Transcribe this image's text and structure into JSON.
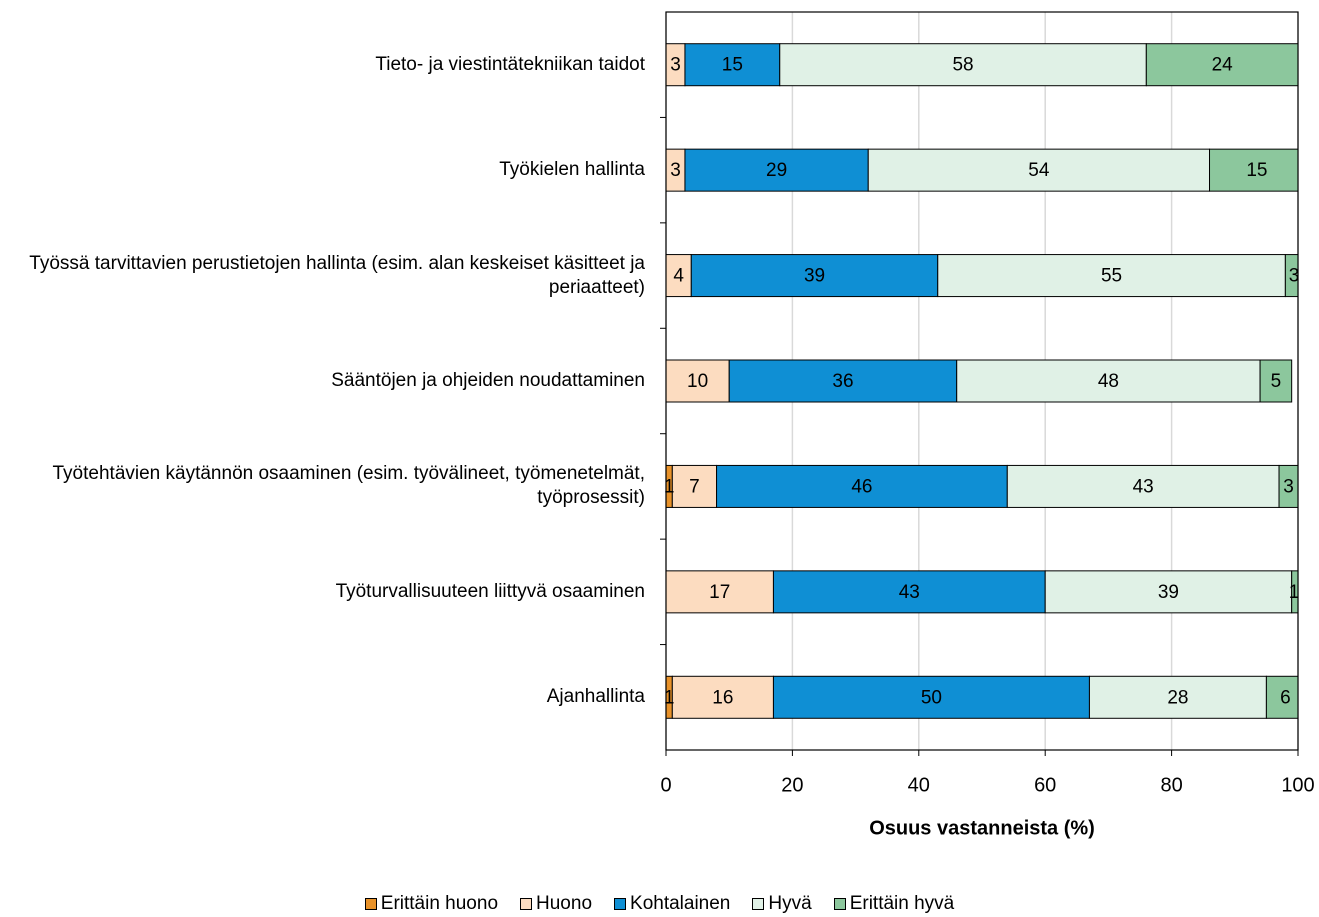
{
  "chart_data": {
    "type": "stacked_barh",
    "xlabel": "Osuus vastanneista (%)",
    "categories": [
      "Tieto- ja viestintätekniikan taidot",
      "Työkielen hallinta",
      "Työssä tarvittavien perustietojen hallinta (esim. alan keskeiset käsitteet ja periaatteet)",
      "Sääntöjen ja ohjeiden noudattaminen",
      "Työtehtävien käytännön osaaminen (esim. työvälineet, työmenetelmät, työprosessit)",
      "Työturvallisuuteen liittyvä osaaminen",
      "Ajanhallinta"
    ],
    "series": [
      {
        "name": "Erittäin huono",
        "color": "#e8922a",
        "values": [
          0,
          0,
          0,
          0,
          1,
          0,
          1
        ]
      },
      {
        "name": "Huono",
        "color": "#fcdcc0",
        "values": [
          3,
          3,
          4,
          10,
          7,
          17,
          16
        ]
      },
      {
        "name": "Kohtalainen",
        "color": "#0f8fd4",
        "values": [
          15,
          29,
          39,
          36,
          46,
          43,
          50
        ]
      },
      {
        "name": "Hyvä",
        "color": "#e0f1e6",
        "values": [
          58,
          54,
          55,
          48,
          43,
          39,
          28
        ]
      },
      {
        "name": "Erittäin hyvä",
        "color": "#8cc79d",
        "values": [
          24,
          15,
          3,
          5,
          3,
          1,
          6
        ]
      }
    ],
    "xlim": [
      0,
      100
    ],
    "xticks": [
      0,
      20,
      40,
      60,
      80,
      100
    ],
    "grid": true,
    "legend": "bottom"
  }
}
